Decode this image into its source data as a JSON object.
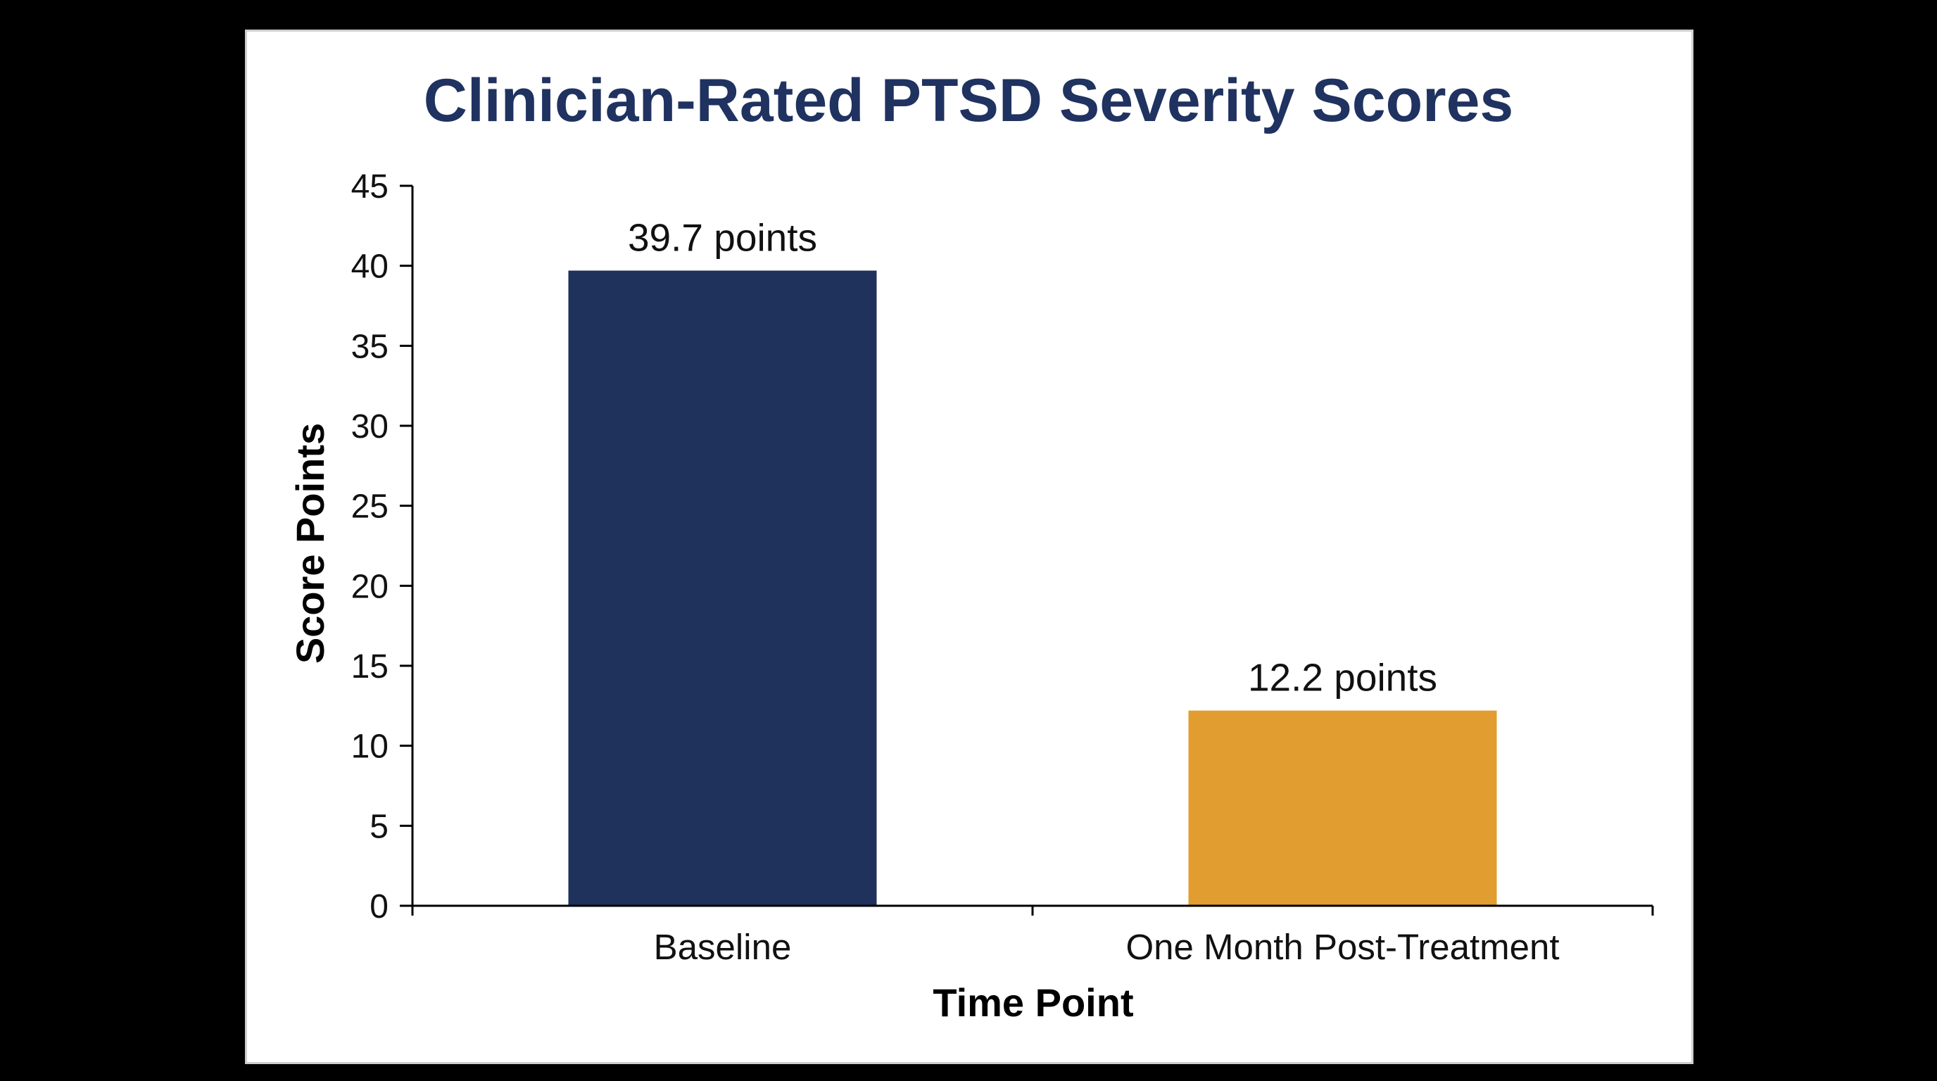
{
  "chart_data": {
    "type": "bar",
    "title": "Clinician-Rated PTSD Severity Scores",
    "xlabel": "Time Point",
    "ylabel": "Score Points",
    "categories": [
      "Baseline",
      "One Month Post-Treatment"
    ],
    "values": [
      39.7,
      12.2
    ],
    "data_labels": [
      "39.7 points",
      "12.2 points"
    ],
    "ylim": [
      0,
      45
    ],
    "yticks": [
      0,
      5,
      10,
      15,
      20,
      25,
      30,
      35,
      40,
      45
    ],
    "grid": false,
    "legend": "none",
    "colors": {
      "title": "#1f3260",
      "bars": [
        "#1f325c",
        "#e19d2f"
      ],
      "axis": "#000000"
    }
  }
}
